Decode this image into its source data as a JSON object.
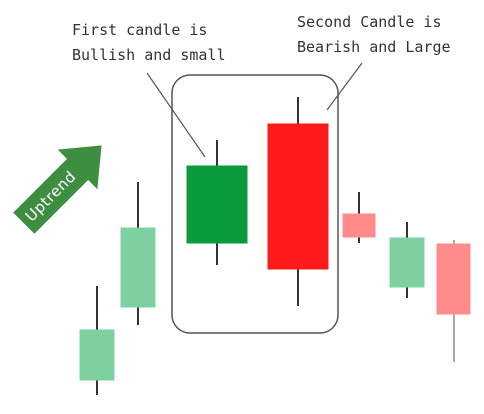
{
  "annotations": {
    "first_candle": {
      "line1": "First candle is",
      "line2": "Bullish and small"
    },
    "second_candle": {
      "line1": "Second Candle is",
      "line2": "Bearish and Large"
    }
  },
  "arrow": {
    "label": "Uptrend",
    "color": "#3e8e41"
  },
  "colors": {
    "bullish_faded": "#7fd0a0",
    "bullish_strong": "#0a9a3c",
    "bearish_strong": "#ff1a1a",
    "bearish_faded": "#ff8a8a",
    "wick": "#333333",
    "highlight_box": "#555555"
  },
  "candles": [
    {
      "id": "c1",
      "direction": "bullish",
      "emphasis": "faded"
    },
    {
      "id": "c2",
      "direction": "bullish",
      "emphasis": "faded"
    },
    {
      "id": "c3",
      "direction": "bullish",
      "emphasis": "strong"
    },
    {
      "id": "c4",
      "direction": "bearish",
      "emphasis": "strong"
    },
    {
      "id": "c5",
      "direction": "bearish",
      "emphasis": "faded"
    },
    {
      "id": "c6",
      "direction": "bullish",
      "emphasis": "faded"
    },
    {
      "id": "c7",
      "direction": "bearish",
      "emphasis": "faded"
    }
  ]
}
